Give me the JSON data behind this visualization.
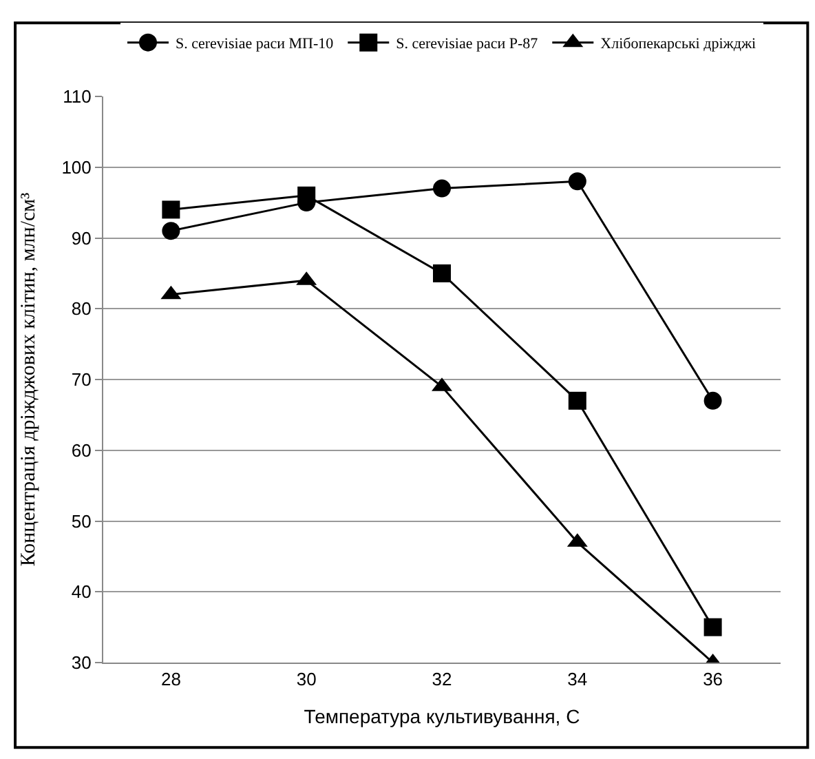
{
  "chart_data": {
    "type": "line",
    "xlabel": "Температура культивування, С",
    "ylabel": "Концентрація дріжджових клітин, млн/см³",
    "categories": [
      "28",
      "30",
      "32",
      "34",
      "36"
    ],
    "series": [
      {
        "name": "S. cerevisiae раси МП-10",
        "color": "#000000",
        "marker": "circle",
        "values": [
          91,
          95,
          97,
          98,
          67
        ]
      },
      {
        "name": "S. cerevisiae раси Р-87",
        "color": "#000000",
        "marker": "square",
        "values": [
          94,
          96,
          85,
          67,
          35
        ]
      },
      {
        "name": "Хлібопекарські дріжджі",
        "color": "#000000",
        "marker": "triangle",
        "values": [
          82,
          84,
          69,
          47,
          30
        ]
      }
    ],
    "ylim": [
      30,
      110
    ],
    "yticks": [
      30,
      40,
      50,
      60,
      70,
      80,
      90,
      100,
      110
    ],
    "grid": "y",
    "legend": "top"
  }
}
